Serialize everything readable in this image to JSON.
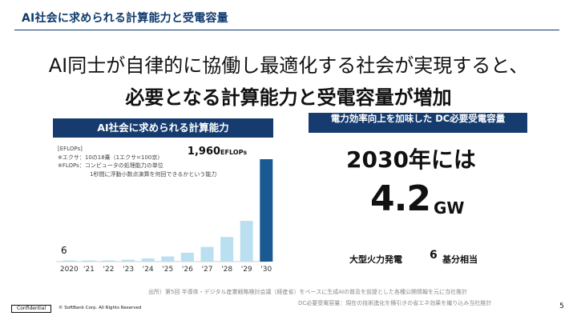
{
  "header": {
    "title": "AI社会に求められる計算能力と受電容量"
  },
  "headline": {
    "line1": "AI同士が自律的に協働し最適化する社会が実現すると、",
    "line2": "必要となる計算能力と受電容量が増加"
  },
  "left_panel": {
    "banner": "AI社会に求められる計算能力",
    "unit_label": "[EFLOPs]",
    "notes": [
      "※エクサ：10の18乗（1エクサ=100京）",
      "※FLOPs：コンピュータの処理能力の単位",
      "1秒間に浮動小数点演算を何回できるかという能力"
    ],
    "first_value_label": "6",
    "last_value_number": "1,960",
    "last_value_unit": "EFLOPs"
  },
  "chart_data": {
    "type": "bar",
    "categories": [
      "2020",
      "'21",
      "'22",
      "'23",
      "'24",
      "'25",
      "'26",
      "'27",
      "'28",
      "'29",
      "'30"
    ],
    "values": [
      6,
      10,
      20,
      35,
      60,
      100,
      170,
      280,
      470,
      780,
      1960
    ],
    "highlight_last": true,
    "colors": {
      "bar": "#b9dff0",
      "bar_last": "#1a5a93"
    }
  },
  "right_panel": {
    "banner": "電力効率向上を加味した DC必要受電容量",
    "year_text": "2030年には",
    "value": "4.2",
    "unit": "GW",
    "equiv_prefix": "大型火力発電",
    "equiv_count": "6",
    "equiv_suffix": "基分相当"
  },
  "footer": {
    "source1": "出所）第5回 半導体・デジタル産業戦略検討会議（経産省）をベースに生成AIの普及を前提とした各種公開情報を元に当社推計",
    "source2": "DC必要受電容量：現在の技術進化を横引きの省エネ効果を織り込み当社推計",
    "confidential": "Confidential",
    "copyright": "© SoftBank Corp. All Rights Reserved",
    "page_number": "5"
  },
  "colors": {
    "navy": "#163c6f",
    "title_blue": "#0e3a6d"
  }
}
